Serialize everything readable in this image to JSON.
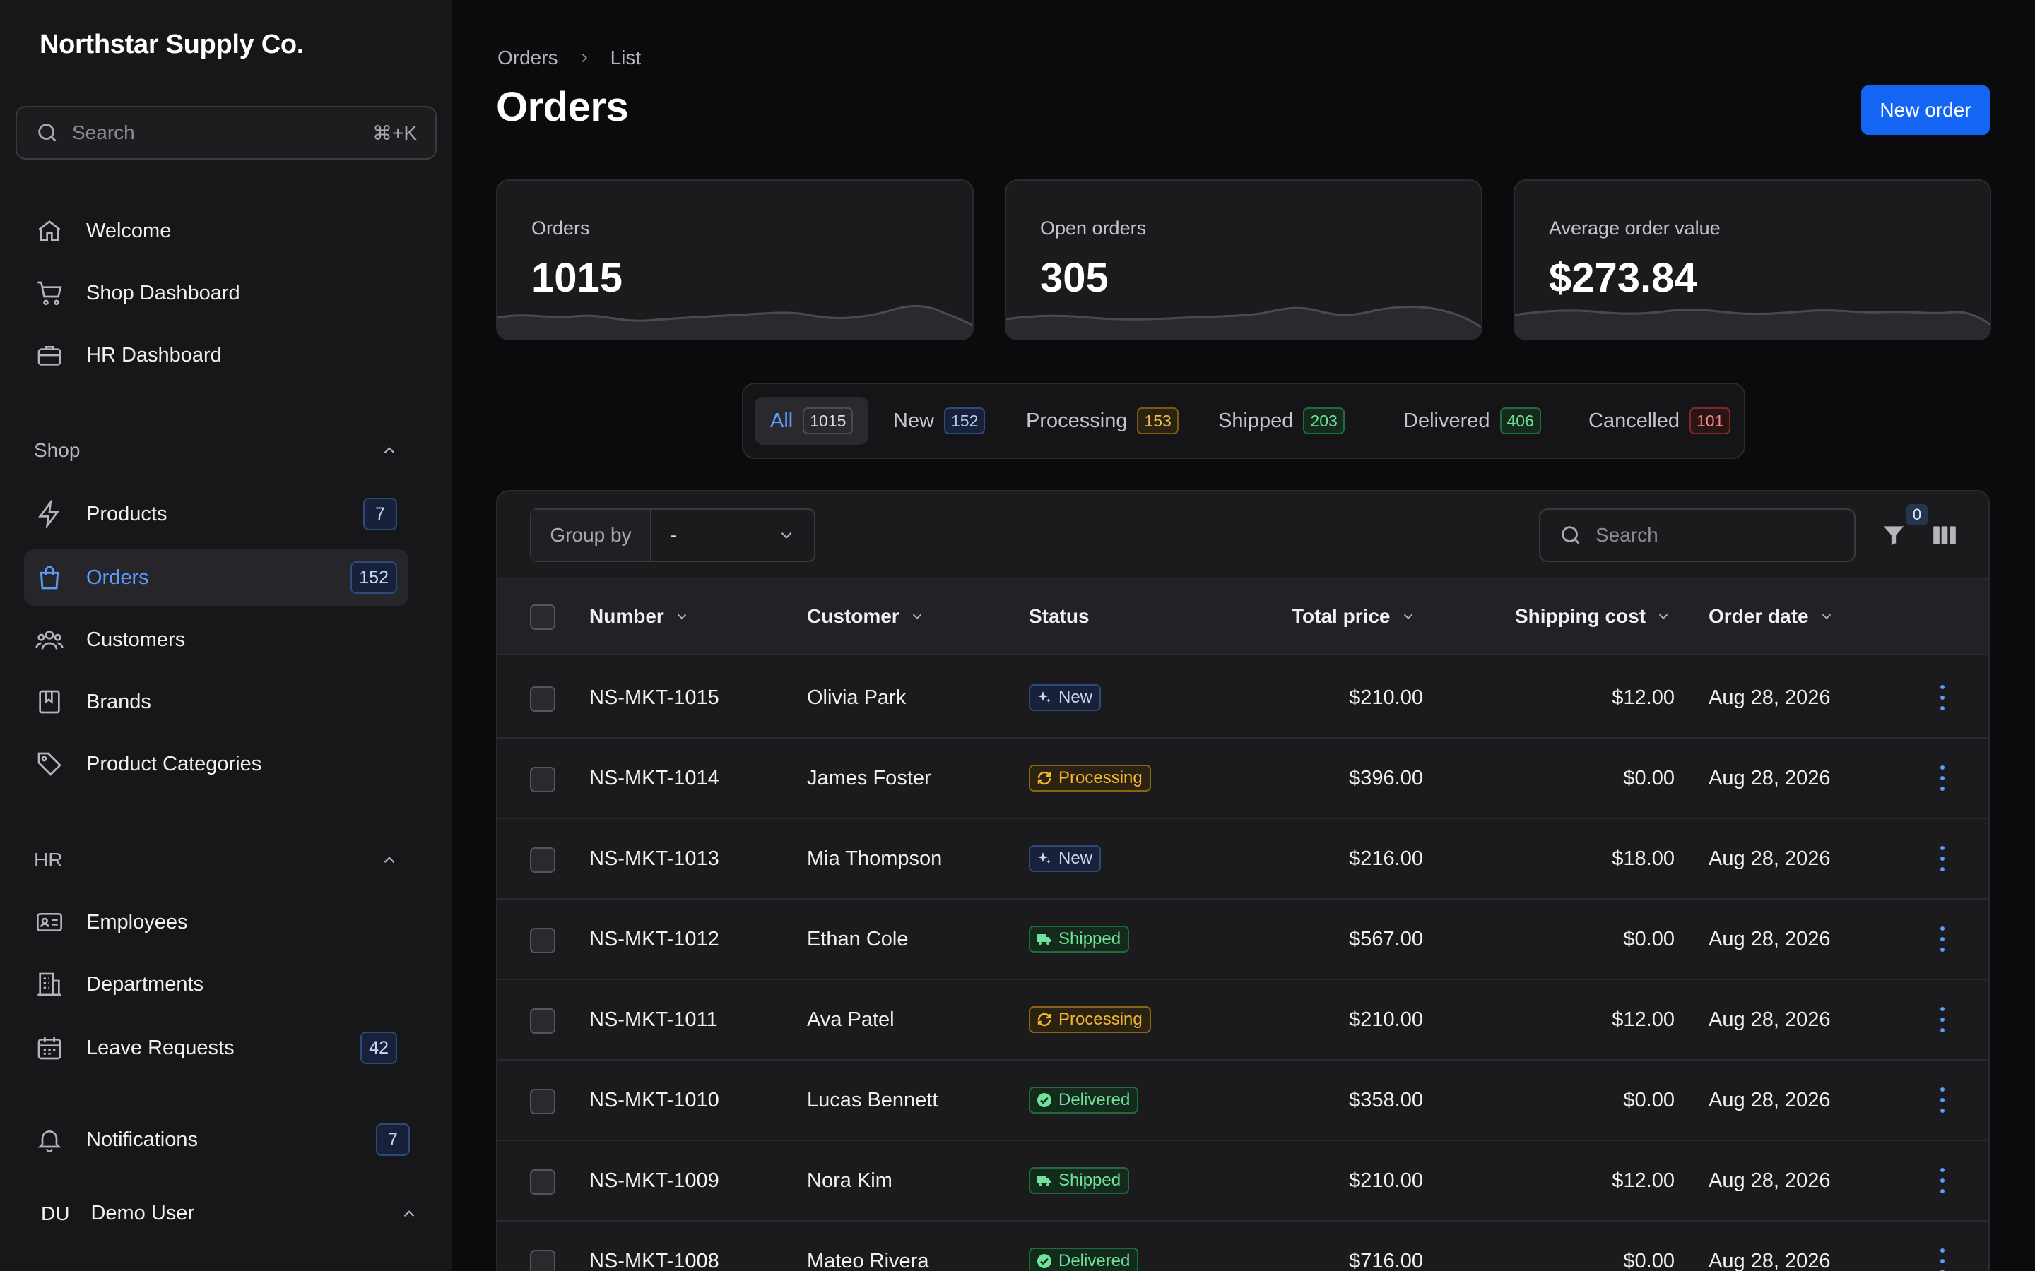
{
  "app": {
    "brand": "Northstar Supply Co."
  },
  "sidebar": {
    "search": {
      "placeholder": "Search",
      "shortcut": "⌘+K"
    },
    "top_items": [
      {
        "label": "Welcome",
        "icon": "home-icon"
      },
      {
        "label": "Shop Dashboard",
        "icon": "cart-icon"
      },
      {
        "label": "HR Dashboard",
        "icon": "briefcase-icon"
      }
    ],
    "shop_section": {
      "title": "Shop",
      "items": [
        {
          "label": "Products",
          "icon": "bolt-icon",
          "badge": "7"
        },
        {
          "label": "Orders",
          "icon": "shopping-bag-icon",
          "badge": "152",
          "active": true
        },
        {
          "label": "Customers",
          "icon": "users-icon"
        },
        {
          "label": "Brands",
          "icon": "bookmark-icon"
        },
        {
          "label": "Product Categories",
          "icon": "tag-icon"
        }
      ]
    },
    "hr_section": {
      "title": "HR",
      "items": [
        {
          "label": "Employees",
          "icon": "id-card-icon"
        },
        {
          "label": "Departments",
          "icon": "building-icon"
        },
        {
          "label": "Leave Requests",
          "icon": "calendar-icon",
          "badge": "42"
        }
      ]
    },
    "notifications": {
      "label": "Notifications",
      "icon": "bell-icon",
      "badge": "7"
    },
    "user": {
      "initials": "DU",
      "name": "Demo User"
    }
  },
  "header": {
    "breadcrumb": [
      "Orders",
      "List"
    ],
    "title": "Orders",
    "new_order_label": "New order"
  },
  "stats": [
    {
      "label": "Orders",
      "value": "1015"
    },
    {
      "label": "Open orders",
      "value": "305"
    },
    {
      "label": "Average order value",
      "value": "$273.84"
    }
  ],
  "tabs": [
    {
      "label": "All",
      "count": "1015",
      "tone": "gray",
      "active": true
    },
    {
      "label": "New",
      "count": "152",
      "tone": "blue"
    },
    {
      "label": "Processing",
      "count": "153",
      "tone": "amber"
    },
    {
      "label": "Shipped",
      "count": "203",
      "tone": "green"
    },
    {
      "label": "Delivered",
      "count": "406",
      "tone": "green"
    },
    {
      "label": "Cancelled",
      "count": "101",
      "tone": "red"
    }
  ],
  "toolbar": {
    "group_by_label": "Group by",
    "group_by_value": "-",
    "search_placeholder": "Search",
    "filter_count": "0"
  },
  "table": {
    "columns": [
      "Number",
      "Customer",
      "Status",
      "Total price",
      "Shipping cost",
      "Order date"
    ],
    "rows": [
      {
        "number": "NS-MKT-1015",
        "customer": "Olivia Park",
        "status": "New",
        "total": "$210.00",
        "shipping": "$12.00",
        "date": "Aug 28, 2026"
      },
      {
        "number": "NS-MKT-1014",
        "customer": "James Foster",
        "status": "Processing",
        "total": "$396.00",
        "shipping": "$0.00",
        "date": "Aug 28, 2026"
      },
      {
        "number": "NS-MKT-1013",
        "customer": "Mia Thompson",
        "status": "New",
        "total": "$216.00",
        "shipping": "$18.00",
        "date": "Aug 28, 2026"
      },
      {
        "number": "NS-MKT-1012",
        "customer": "Ethan Cole",
        "status": "Shipped",
        "total": "$567.00",
        "shipping": "$0.00",
        "date": "Aug 28, 2026"
      },
      {
        "number": "NS-MKT-1011",
        "customer": "Ava Patel",
        "status": "Processing",
        "total": "$210.00",
        "shipping": "$12.00",
        "date": "Aug 28, 2026"
      },
      {
        "number": "NS-MKT-1010",
        "customer": "Lucas Bennett",
        "status": "Delivered",
        "total": "$358.00",
        "shipping": "$0.00",
        "date": "Aug 28, 2026"
      },
      {
        "number": "NS-MKT-1009",
        "customer": "Nora Kim",
        "status": "Shipped",
        "total": "$210.00",
        "shipping": "$12.00",
        "date": "Aug 28, 2026"
      },
      {
        "number": "NS-MKT-1008",
        "customer": "Mateo Rivera",
        "status": "Delivered",
        "total": "$716.00",
        "shipping": "$0.00",
        "date": "Aug 28, 2026"
      }
    ]
  },
  "colors": {
    "accent": "#1565f5",
    "link_active": "#5b9dff",
    "background": "#0b0b0d",
    "sidebar": "#171719"
  }
}
